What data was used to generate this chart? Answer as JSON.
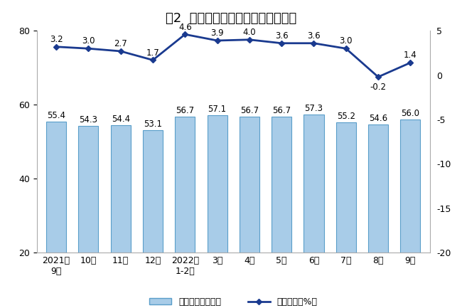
{
  "title": "图2  规模以上工业原油产量月度走势",
  "categories": [
    "2021年\n9月",
    "10月",
    "11月",
    "12月",
    "2022年\n1-2月",
    "3月",
    "4月",
    "5月",
    "6月",
    "7月",
    "8月",
    "9月"
  ],
  "bar_values": [
    55.4,
    54.3,
    54.4,
    53.1,
    56.7,
    57.1,
    56.7,
    56.7,
    57.3,
    55.2,
    54.6,
    56.0
  ],
  "line_values": [
    3.2,
    3.0,
    2.7,
    1.7,
    4.6,
    3.9,
    4.0,
    3.6,
    3.6,
    3.0,
    -0.2,
    1.4
  ],
  "bar_color": "#a8cce8",
  "bar_edge_color": "#5a9ec9",
  "line_color": "#1a3a8f",
  "line_marker": "D",
  "bar_ylim": [
    20,
    80
  ],
  "bar_yticks": [
    20,
    40,
    60,
    80
  ],
  "line_ylim": [
    -20,
    5
  ],
  "line_yticks": [
    -20,
    -15,
    -10,
    -5,
    0,
    5
  ],
  "legend_bar_label": "日均产量（万吨）",
  "legend_line_label": "当月增速（%）",
  "title_fontsize": 13,
  "tick_fontsize": 9,
  "annotation_fontsize": 8.5,
  "background_color": "#ffffff"
}
